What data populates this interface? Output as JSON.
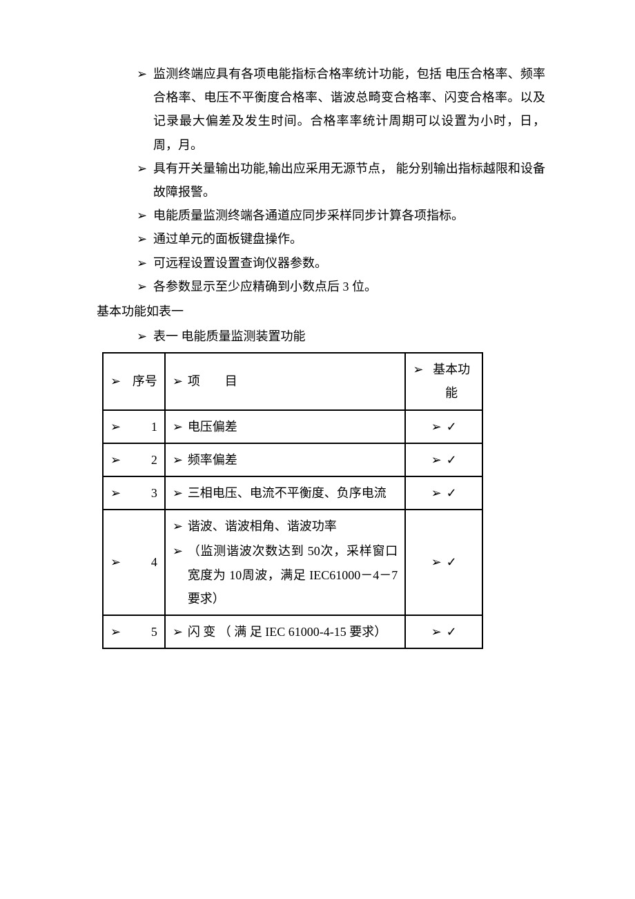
{
  "bullets": {
    "b1": "监测终端应具有各项电能指标合格率统计功能，包括 电压合格率、频率合格率、电压不平衡度合格率、谐波总畸变合格率、闪变合格率。以及记录最大偏差及发生时间。合格率率统计周期可以设置为小时，日，周，月。",
    "b2": "具有开关量输出功能,输出应采用无源节点，  能分别输出指标越限和设备故障报警。",
    "b3": "电能质量监测终端各通道应同步采样同步计算各项指标。",
    "b4": "通过单元的面板键盘操作。",
    "b5": "可远程设置设置查询仪器参数。",
    "b6": "各参数显示至少应精确到小数点后 3 位。"
  },
  "preTable": "基本功能如表一",
  "tableCaption": "表一 电能质量监测装置功能",
  "table": {
    "headers": {
      "seq": "序号",
      "item": "项  目",
      "func": "基本功能"
    },
    "rows": [
      {
        "seq": "1",
        "items": [
          "电压偏差"
        ],
        "func": "✓"
      },
      {
        "seq": "2",
        "items": [
          "频率偏差"
        ],
        "func": "✓"
      },
      {
        "seq": "3",
        "items": [
          "三相电压、电流不平衡度、负序电流"
        ],
        "func": "✓"
      },
      {
        "seq": "4",
        "items": [
          "谐波、谐波相角、谐波功率",
          "（监测谐波次数达到 50次，采样窗口宽度为 10周波，满足 IEC61000－4－7 要求）"
        ],
        "func": "✓"
      },
      {
        "seq": "5",
        "items": [
          "闪 变 （ 满 足  IEC 61000-4-15 要求）"
        ],
        "func": "✓"
      }
    ]
  }
}
